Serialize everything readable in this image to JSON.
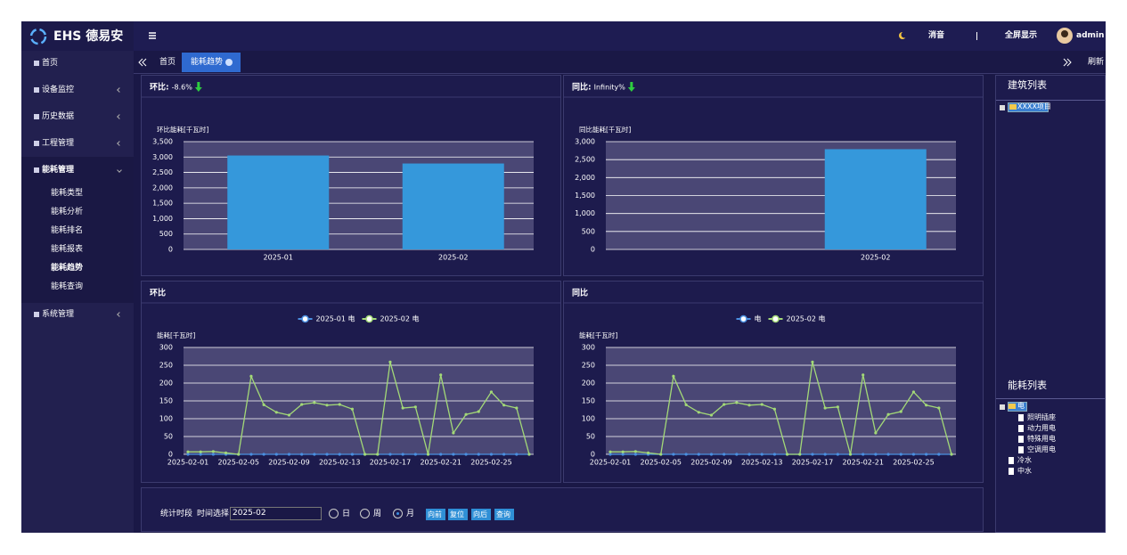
{
  "header": {
    "logo": "EHS 德易安",
    "mute": "消音",
    "fullscreen": "全屏显示",
    "user": "admin"
  },
  "sidebar": {
    "items": [
      {
        "label": "首页"
      },
      {
        "label": "设备监控"
      },
      {
        "label": "历史数据"
      },
      {
        "label": "工程管理"
      },
      {
        "label": "能耗管理",
        "children": [
          "能耗类型",
          "能耗分析",
          "能耗排名",
          "能耗报表",
          "能耗趋势",
          "能耗查询"
        ]
      },
      {
        "label": "系统管理"
      }
    ]
  },
  "tabs": {
    "items": [
      "首页",
      "能耗趋势"
    ],
    "refresh": "刷新"
  },
  "chart_data": [
    {
      "type": "bar",
      "title": "环比:",
      "change": "-8.6%",
      "y_label": "环比能耗[千瓦时]",
      "categories": [
        "2025-01",
        "2025-02"
      ],
      "values": [
        3050,
        2790
      ],
      "color": "#3598db",
      "ylim": [
        0,
        3500
      ],
      "yticks": [
        0,
        500,
        {
          "value": 1000,
          "label": "1,000"
        },
        {
          "value": 1500,
          "label": "1,500"
        },
        {
          "value": 2000,
          "label": "2,000"
        },
        {
          "value": 2500,
          "label": "2,500"
        },
        {
          "value": 3000,
          "label": "3,000"
        },
        {
          "value": 3500,
          "label": "3,500"
        }
      ],
      "grid": true
    },
    {
      "type": "bar",
      "title": "同比:",
      "change": "Infinity%",
      "y_label": "同比能耗[千瓦时]",
      "categories": [
        null,
        "2025-02"
      ],
      "values": [
        0,
        2790
      ],
      "color": "#3598db",
      "ylim": [
        0,
        3000
      ],
      "yticks": [
        0,
        500,
        {
          "value": 1000,
          "label": "1,000"
        },
        {
          "value": 1500,
          "label": "1,500"
        },
        {
          "value": 2000,
          "label": "2,000"
        },
        {
          "value": 2500,
          "label": "2,500"
        },
        {
          "value": 3000,
          "label": "3,000"
        }
      ],
      "grid": true
    },
    {
      "type": "line",
      "title": "环比",
      "y_label": "能耗[千瓦时]",
      "categories": [
        "2025-02-01",
        null,
        null,
        null,
        "2025-02-05",
        null,
        null,
        null,
        "2025-02-09",
        null,
        null,
        null,
        "2025-02-13",
        null,
        null,
        null,
        "2025-02-17",
        null,
        null,
        null,
        "2025-02-21",
        null,
        null,
        null,
        "2025-02-25",
        null,
        null,
        null
      ],
      "series": [
        {
          "name": "2025-01 电",
          "color": "#4a8fe0",
          "values": [
            0,
            0,
            0,
            0,
            0,
            0,
            0,
            0,
            0,
            0,
            0,
            0,
            0,
            0,
            0,
            0,
            0,
            0,
            0,
            0,
            0,
            0,
            0,
            0,
            0,
            0,
            0,
            0
          ]
        },
        {
          "name": "2025-02 电",
          "color": "#a3d977",
          "values": [
            7,
            7,
            8,
            4,
            0,
            219,
            139,
            118,
            110,
            140,
            145,
            138,
            140,
            127,
            0,
            0,
            259,
            130,
            133,
            0,
            223,
            60,
            112,
            120,
            175,
            138,
            130,
            0
          ]
        }
      ],
      "ylim": [
        0,
        300
      ],
      "yticks": [
        0,
        50,
        100,
        150,
        200,
        250,
        300
      ],
      "grid": true
    },
    {
      "type": "line",
      "title": "同比",
      "y_label": "能耗[千瓦时]",
      "categories": [
        "2025-02-01",
        null,
        null,
        null,
        "2025-02-05",
        null,
        null,
        null,
        "2025-02-09",
        null,
        null,
        null,
        "2025-02-13",
        null,
        null,
        null,
        "2025-02-17",
        null,
        null,
        null,
        "2025-02-21",
        null,
        null,
        null,
        "2025-02-25",
        null,
        null,
        null
      ],
      "series": [
        {
          "name": "电",
          "color": "#4a8fe0",
          "values": [
            0,
            0,
            0,
            0,
            0,
            0,
            0,
            0,
            0,
            0,
            0,
            0,
            0,
            0,
            0,
            0,
            0,
            0,
            0,
            0,
            0,
            0,
            0,
            0,
            0,
            0,
            0,
            0
          ]
        },
        {
          "name": "2025-02 电",
          "color": "#a3d977",
          "values": [
            7,
            7,
            8,
            4,
            0,
            219,
            139,
            118,
            110,
            140,
            145,
            138,
            140,
            127,
            0,
            0,
            259,
            130,
            133,
            0,
            223,
            60,
            112,
            120,
            175,
            138,
            130,
            0
          ]
        }
      ],
      "ylim": [
        0,
        300
      ],
      "yticks": [
        0,
        50,
        100,
        150,
        200,
        250,
        300
      ],
      "grid": true
    }
  ],
  "form": {
    "period_label": "统计时段",
    "time_label": "时间选择",
    "time_value": "2025-02",
    "options": [
      "日",
      "周",
      "月"
    ],
    "buttons": [
      "向前",
      "复位",
      "向后",
      "查询"
    ]
  },
  "building_list": {
    "title": "建筑列表",
    "items": [
      "XXXX项目"
    ]
  },
  "energy_list": {
    "title": "能耗列表",
    "root": "电",
    "children": [
      "照明插座",
      "动力用电",
      "特殊用电",
      "空调用电"
    ],
    "others": [
      "冷水",
      "中水"
    ]
  }
}
